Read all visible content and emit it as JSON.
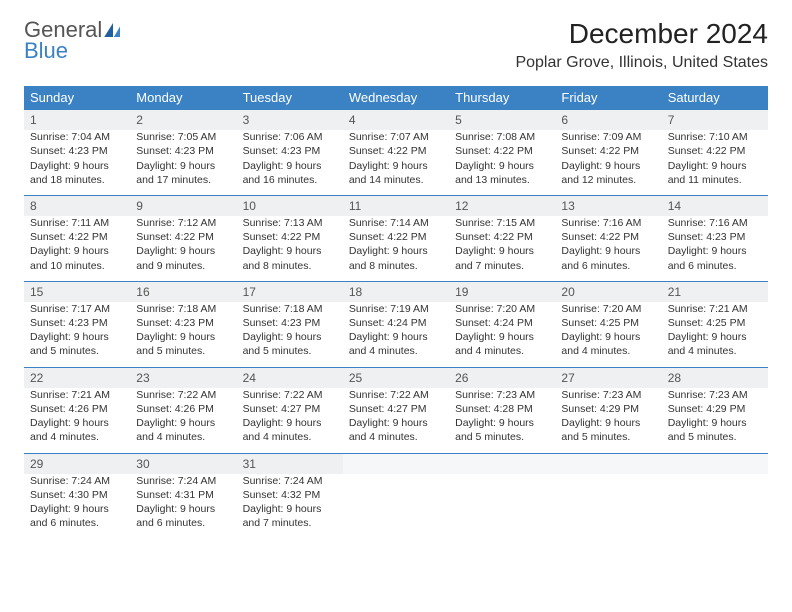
{
  "logo": {
    "line1": "General",
    "line2": "Blue",
    "line2_color": "#3b82c4"
  },
  "title": "December 2024",
  "location": "Poplar Grove, Illinois, United States",
  "colors": {
    "header_bg": "#3b82c4",
    "header_text": "#ffffff",
    "daynum_bg": "#eef0f2",
    "border": "#3b82c4",
    "text": "#333333"
  },
  "columns": [
    "Sunday",
    "Monday",
    "Tuesday",
    "Wednesday",
    "Thursday",
    "Friday",
    "Saturday"
  ],
  "weeks": [
    [
      {
        "day": "1",
        "sunrise": "7:04 AM",
        "sunset": "4:23 PM",
        "daylight": "9 hours and 18 minutes."
      },
      {
        "day": "2",
        "sunrise": "7:05 AM",
        "sunset": "4:23 PM",
        "daylight": "9 hours and 17 minutes."
      },
      {
        "day": "3",
        "sunrise": "7:06 AM",
        "sunset": "4:23 PM",
        "daylight": "9 hours and 16 minutes."
      },
      {
        "day": "4",
        "sunrise": "7:07 AM",
        "sunset": "4:22 PM",
        "daylight": "9 hours and 14 minutes."
      },
      {
        "day": "5",
        "sunrise": "7:08 AM",
        "sunset": "4:22 PM",
        "daylight": "9 hours and 13 minutes."
      },
      {
        "day": "6",
        "sunrise": "7:09 AM",
        "sunset": "4:22 PM",
        "daylight": "9 hours and 12 minutes."
      },
      {
        "day": "7",
        "sunrise": "7:10 AM",
        "sunset": "4:22 PM",
        "daylight": "9 hours and 11 minutes."
      }
    ],
    [
      {
        "day": "8",
        "sunrise": "7:11 AM",
        "sunset": "4:22 PM",
        "daylight": "9 hours and 10 minutes."
      },
      {
        "day": "9",
        "sunrise": "7:12 AM",
        "sunset": "4:22 PM",
        "daylight": "9 hours and 9 minutes."
      },
      {
        "day": "10",
        "sunrise": "7:13 AM",
        "sunset": "4:22 PM",
        "daylight": "9 hours and 8 minutes."
      },
      {
        "day": "11",
        "sunrise": "7:14 AM",
        "sunset": "4:22 PM",
        "daylight": "9 hours and 8 minutes."
      },
      {
        "day": "12",
        "sunrise": "7:15 AM",
        "sunset": "4:22 PM",
        "daylight": "9 hours and 7 minutes."
      },
      {
        "day": "13",
        "sunrise": "7:16 AM",
        "sunset": "4:22 PM",
        "daylight": "9 hours and 6 minutes."
      },
      {
        "day": "14",
        "sunrise": "7:16 AM",
        "sunset": "4:23 PM",
        "daylight": "9 hours and 6 minutes."
      }
    ],
    [
      {
        "day": "15",
        "sunrise": "7:17 AM",
        "sunset": "4:23 PM",
        "daylight": "9 hours and 5 minutes."
      },
      {
        "day": "16",
        "sunrise": "7:18 AM",
        "sunset": "4:23 PM",
        "daylight": "9 hours and 5 minutes."
      },
      {
        "day": "17",
        "sunrise": "7:18 AM",
        "sunset": "4:23 PM",
        "daylight": "9 hours and 5 minutes."
      },
      {
        "day": "18",
        "sunrise": "7:19 AM",
        "sunset": "4:24 PM",
        "daylight": "9 hours and 4 minutes."
      },
      {
        "day": "19",
        "sunrise": "7:20 AM",
        "sunset": "4:24 PM",
        "daylight": "9 hours and 4 minutes."
      },
      {
        "day": "20",
        "sunrise": "7:20 AM",
        "sunset": "4:25 PM",
        "daylight": "9 hours and 4 minutes."
      },
      {
        "day": "21",
        "sunrise": "7:21 AM",
        "sunset": "4:25 PM",
        "daylight": "9 hours and 4 minutes."
      }
    ],
    [
      {
        "day": "22",
        "sunrise": "7:21 AM",
        "sunset": "4:26 PM",
        "daylight": "9 hours and 4 minutes."
      },
      {
        "day": "23",
        "sunrise": "7:22 AM",
        "sunset": "4:26 PM",
        "daylight": "9 hours and 4 minutes."
      },
      {
        "day": "24",
        "sunrise": "7:22 AM",
        "sunset": "4:27 PM",
        "daylight": "9 hours and 4 minutes."
      },
      {
        "day": "25",
        "sunrise": "7:22 AM",
        "sunset": "4:27 PM",
        "daylight": "9 hours and 4 minutes."
      },
      {
        "day": "26",
        "sunrise": "7:23 AM",
        "sunset": "4:28 PM",
        "daylight": "9 hours and 5 minutes."
      },
      {
        "day": "27",
        "sunrise": "7:23 AM",
        "sunset": "4:29 PM",
        "daylight": "9 hours and 5 minutes."
      },
      {
        "day": "28",
        "sunrise": "7:23 AM",
        "sunset": "4:29 PM",
        "daylight": "9 hours and 5 minutes."
      }
    ],
    [
      {
        "day": "29",
        "sunrise": "7:24 AM",
        "sunset": "4:30 PM",
        "daylight": "9 hours and 6 minutes."
      },
      {
        "day": "30",
        "sunrise": "7:24 AM",
        "sunset": "4:31 PM",
        "daylight": "9 hours and 6 minutes."
      },
      {
        "day": "31",
        "sunrise": "7:24 AM",
        "sunset": "4:32 PM",
        "daylight": "9 hours and 7 minutes."
      },
      null,
      null,
      null,
      null
    ]
  ],
  "labels": {
    "sunrise": "Sunrise:",
    "sunset": "Sunset:",
    "daylight": "Daylight:"
  }
}
